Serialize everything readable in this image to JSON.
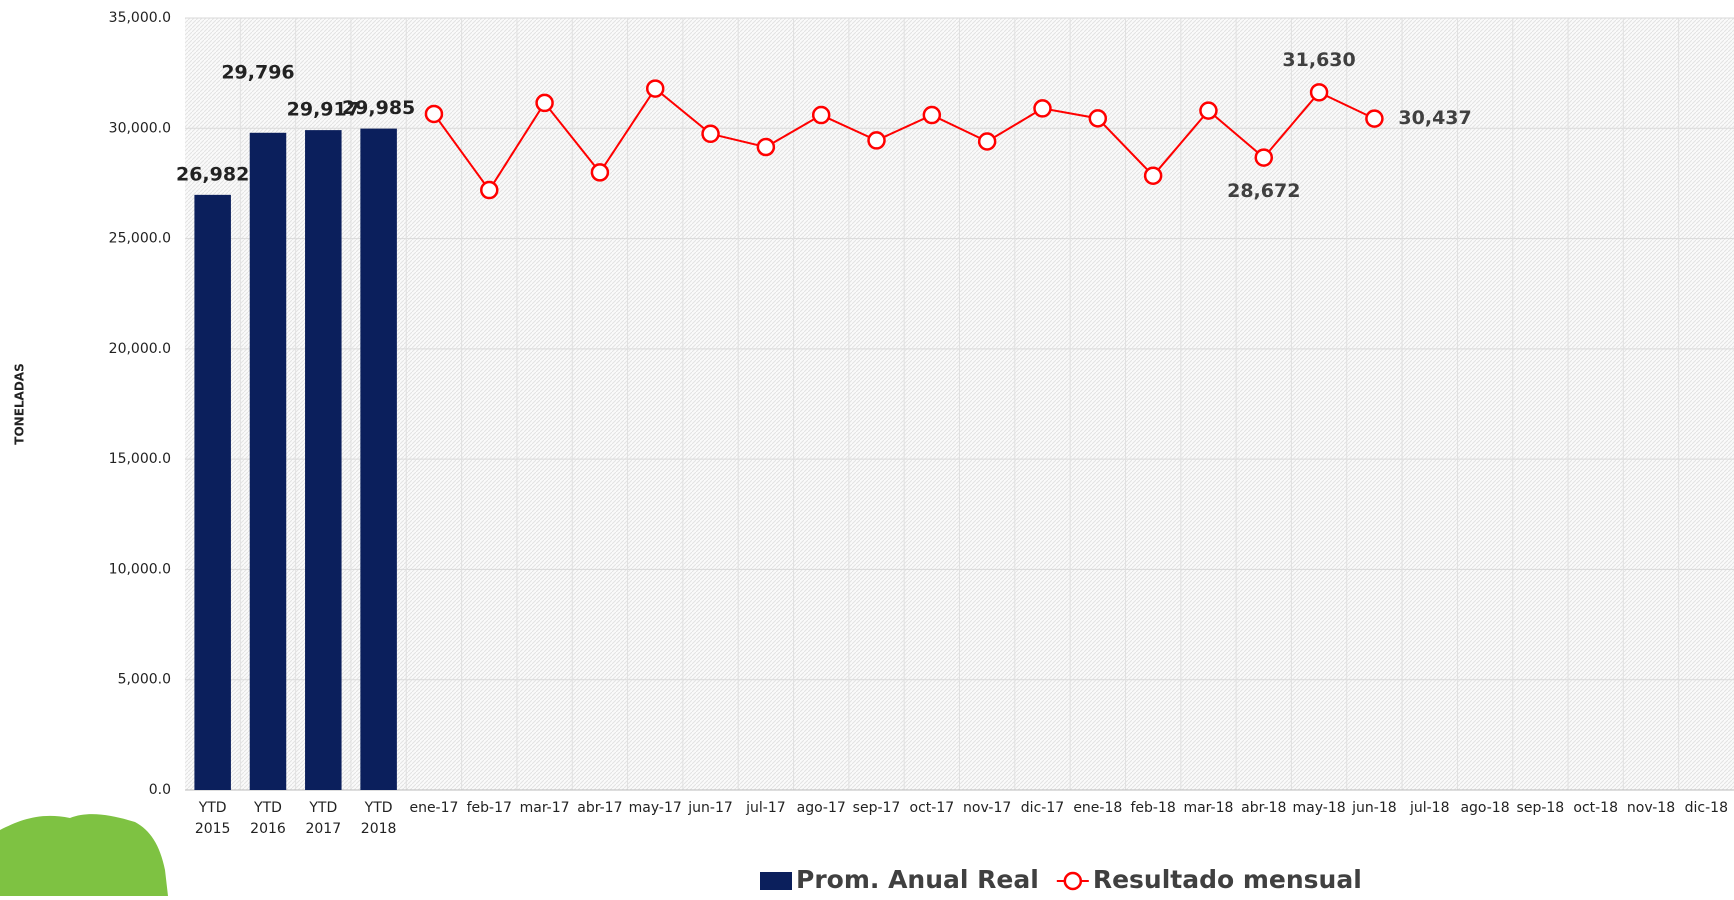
{
  "chart_data": {
    "type": "bar-line",
    "y_label": "TONELADAS",
    "categories": [
      "YTD 2015",
      "YTD 2016",
      "YTD 2017",
      "YTD 2018",
      "ene-17",
      "feb-17",
      "mar-17",
      "abr-17",
      "may-17",
      "jun-17",
      "jul-17",
      "ago-17",
      "sep-17",
      "oct-17",
      "nov-17",
      "dic-17",
      "ene-18",
      "feb-18",
      "mar-18",
      "abr-18",
      "may-18",
      "jun-18",
      "jul-18",
      "ago-18",
      "sep-18",
      "oct-18",
      "nov-18",
      "dic-18"
    ],
    "series": [
      {
        "name": "Prom. Anual Real",
        "type": "bar",
        "color": "#0b1f5c",
        "values": [
          26982,
          29796,
          29917,
          29985,
          null,
          null,
          null,
          null,
          null,
          null,
          null,
          null,
          null,
          null,
          null,
          null,
          null,
          null,
          null,
          null,
          null,
          null,
          null,
          null,
          null,
          null,
          null,
          null
        ],
        "value_labels": [
          "26,982",
          "29,796",
          "29,917",
          "29,985",
          null,
          null,
          null,
          null,
          null,
          null,
          null,
          null,
          null,
          null,
          null,
          null,
          null,
          null,
          null,
          null,
          null,
          null,
          null,
          null,
          null,
          null,
          null,
          null
        ]
      },
      {
        "name": "Resultado mensual",
        "type": "line",
        "color": "#ff0000",
        "values": [
          null,
          null,
          null,
          null,
          30650,
          27200,
          31150,
          28000,
          31800,
          29750,
          29150,
          30600,
          29450,
          30600,
          29400,
          30900,
          30450,
          27850,
          30800,
          28672,
          31630,
          30437,
          null,
          null,
          null,
          null,
          null,
          null
        ],
        "value_labels": [
          null,
          null,
          null,
          null,
          null,
          null,
          null,
          null,
          null,
          null,
          null,
          null,
          null,
          null,
          null,
          null,
          null,
          null,
          null,
          "28,672",
          "31,630",
          "30,437",
          null,
          null,
          null,
          null,
          null,
          null
        ]
      }
    ],
    "ylim": [
      0,
      35000
    ],
    "yticks": [
      {
        "value": 0,
        "label": "0.0"
      },
      {
        "value": 5000,
        "label": "5,000.0"
      },
      {
        "value": 10000,
        "label": "10,000.0"
      },
      {
        "value": 15000,
        "label": "15,000.0"
      },
      {
        "value": 20000,
        "label": "20,000.0"
      },
      {
        "value": 25000,
        "label": "25,000.0"
      },
      {
        "value": 30000,
        "label": "30,000.0"
      },
      {
        "value": 35000,
        "label": "35,000.0"
      }
    ],
    "grid": true
  }
}
